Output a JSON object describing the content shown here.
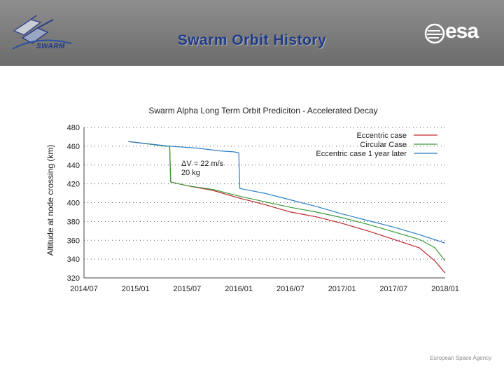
{
  "header": {
    "title": "Swarm Orbit History",
    "swarm_logo_text": "SWARM",
    "esa_logo_text": "esa"
  },
  "footer": {
    "agency": "European Space Agency"
  },
  "colors": {
    "header_bg": "#7b7b7b",
    "title": "#1f3a86",
    "eccentric": "#c0262d",
    "circular": "#3a9a3a",
    "eccentric_later": "#2b7fc5"
  },
  "chart_data": {
    "type": "line",
    "title": "Swarm Alpha Long Term Orbit Prediciton - Accelerated Decay",
    "xlabel": "",
    "ylabel": "Altitude at node crossing (km)",
    "ylim": [
      320,
      480
    ],
    "yticks": [
      320,
      340,
      360,
      380,
      400,
      420,
      440,
      460,
      480
    ],
    "ytick_labels": [
      "320",
      "340",
      "360",
      "380",
      "400",
      "420",
      "440",
      "460",
      "480"
    ],
    "xlim": [
      2014.5,
      2018.0
    ],
    "xticks": [
      2014.5,
      2015.0,
      2015.5,
      2016.0,
      2016.5,
      2017.0,
      2017.5,
      2018.0
    ],
    "xtick_labels": [
      "2014/07",
      "2015/01",
      "2015/07",
      "2016/01",
      "2016/07",
      "2017/01",
      "2017/07",
      "2018/01"
    ],
    "annotation": {
      "lines": [
        "ΔV = 22 m/s",
        "20 kg"
      ],
      "x": 2015.6,
      "y": 435
    },
    "series": [
      {
        "name": "Eccentric case",
        "color": "#c0262d",
        "x": [
          2014.93,
          2015.3,
          2015.33,
          2015.34,
          2015.5,
          2015.75,
          2016.0,
          2016.25,
          2016.5,
          2016.75,
          2017.0,
          2017.25,
          2017.5,
          2017.75,
          2017.9,
          2018.0
        ],
        "y": [
          465,
          460,
          460,
          422,
          418,
          413,
          405,
          398,
          390,
          385,
          378,
          370,
          361,
          352,
          338,
          325
        ]
      },
      {
        "name": "Circular Case",
        "color": "#3a9a3a",
        "x": [
          2014.93,
          2015.3,
          2015.33,
          2015.34,
          2015.5,
          2015.75,
          2016.0,
          2016.25,
          2016.5,
          2016.75,
          2017.0,
          2017.25,
          2017.5,
          2017.75,
          2017.9,
          2018.0
        ],
        "y": [
          465,
          460,
          460,
          422,
          418,
          414,
          407,
          401,
          395,
          390,
          384,
          377,
          369,
          361,
          352,
          338
        ]
      },
      {
        "name": "Eccentric case 1 year later",
        "color": "#2b7fc5",
        "x": [
          2014.93,
          2015.33,
          2015.6,
          2015.82,
          2015.95,
          2016.0,
          2016.01,
          2016.25,
          2016.5,
          2016.75,
          2017.0,
          2017.25,
          2017.5,
          2017.75,
          2018.0
        ],
        "y": [
          465,
          460,
          458,
          455,
          454,
          453,
          415,
          410,
          403,
          396,
          388,
          381,
          374,
          366,
          357
        ]
      }
    ]
  }
}
